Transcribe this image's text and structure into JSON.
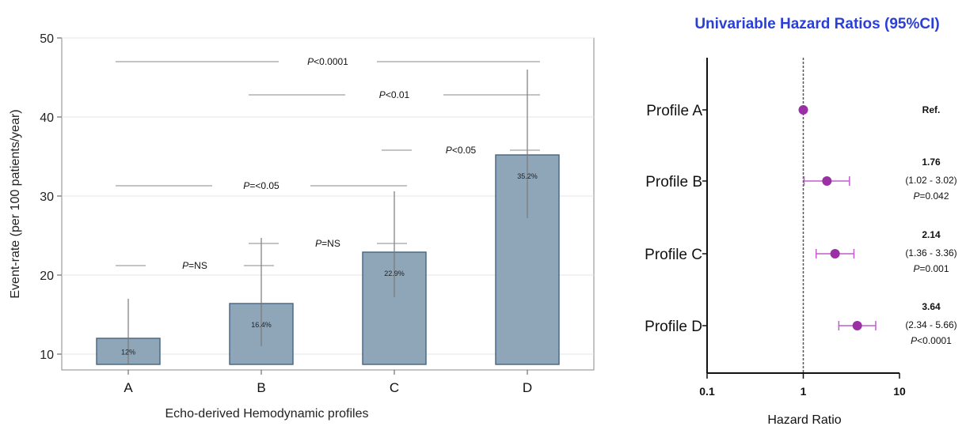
{
  "chart_data": [
    {
      "type": "bar",
      "xlabel": "Echo-derived Hemodynamic profiles",
      "ylabel": "Event-rate (per 100 patients/year)",
      "ylim": [
        8,
        50
      ],
      "yticks": [
        10,
        20,
        30,
        40,
        50
      ],
      "bar_base": 8.7,
      "grid": true,
      "categories": [
        "A",
        "B",
        "C",
        "D"
      ],
      "values": [
        12,
        16.4,
        22.9,
        35.2
      ],
      "value_labels": [
        "12%",
        "16.4%",
        "22.9%",
        "35.2%"
      ],
      "error_upper": [
        17,
        24.7,
        30.6,
        46
      ],
      "error_lower": [
        8.7,
        11,
        17.2,
        27.2
      ],
      "bar_color": "#8fa5b8",
      "bar_edge_color": "#4b6a85",
      "comparisons": [
        {
          "from": "A",
          "to": "D",
          "p_prefix": "P",
          "p_rest": "<0.0001",
          "y": 47
        },
        {
          "from": "B",
          "to": "D",
          "p_prefix": "P",
          "p_rest": "<0.01",
          "y": 42.8
        },
        {
          "from": "C",
          "to": "D",
          "p_prefix": "P",
          "p_rest": "<0.05",
          "y": 35.8
        },
        {
          "from": "A",
          "to": "C",
          "p_prefix": "P",
          "p_rest": "=<0.05",
          "y": 31.3
        },
        {
          "from": "B",
          "to": "C",
          "p_prefix": "P",
          "p_rest": "=NS",
          "y": 24
        },
        {
          "from": "A",
          "to": "B",
          "p_prefix": "P",
          "p_rest": "=NS",
          "y": 21.2
        }
      ]
    },
    {
      "type": "scatter",
      "title": "Univariable Hazard Ratios (95%CI)",
      "xlabel": "Hazard Ratio",
      "xscale": "log",
      "xlim": [
        0.1,
        10
      ],
      "xticks": [
        "0.1",
        "1",
        "10"
      ],
      "reference_line": 1,
      "point_color": "#9b2fa6",
      "ci_color": "#c45ccf",
      "rows": [
        {
          "label": "Profile A",
          "hr": 1,
          "ci_low": null,
          "ci_high": null,
          "hr_text": "Ref.",
          "ci_text": "",
          "p_prefix": "",
          "p_rest": ""
        },
        {
          "label": "Profile B",
          "hr": 1.76,
          "ci_low": 1.02,
          "ci_high": 3.02,
          "hr_text": "1.76",
          "ci_text": "(1.02 - 3.02)",
          "p_prefix": "P",
          "p_rest": "=0.042"
        },
        {
          "label": "Profile C",
          "hr": 2.14,
          "ci_low": 1.36,
          "ci_high": 3.36,
          "hr_text": "2.14",
          "ci_text": "(1.36 - 3.36)",
          "p_prefix": "P",
          "p_rest": "=0.001"
        },
        {
          "label": "Profile D",
          "hr": 3.64,
          "ci_low": 2.34,
          "ci_high": 5.66,
          "hr_text": "3.64",
          "ci_text": "(2.34 - 5.66)",
          "p_prefix": "P",
          "p_rest": "<0.0001"
        }
      ]
    }
  ]
}
